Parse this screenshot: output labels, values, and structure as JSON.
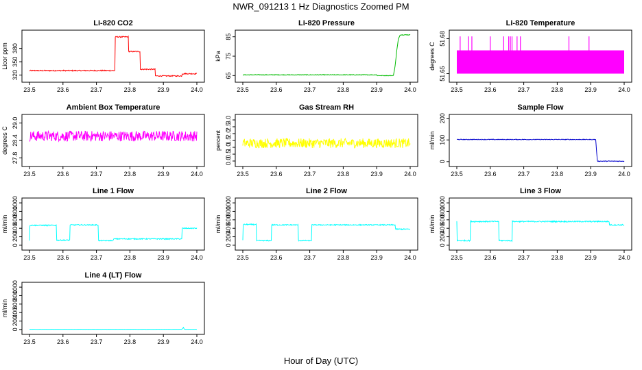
{
  "figure": {
    "title": "NWR_091213  1 Hz Diagnostics Zoomed PM",
    "xlabel": "Hour of Day (UTC)"
  },
  "chart_data": [
    {
      "type": "line",
      "title": "Li-820 CO2",
      "ylabel": "Licor ppm",
      "color": "#ff0000",
      "xlim": [
        23.5,
        24.0
      ],
      "ylim": [
        310,
        415
      ],
      "xticks": [
        "23.5",
        "23.6",
        "23.7",
        "23.8",
        "23.9",
        "24.0"
      ],
      "yticks": [
        {
          "v": 320,
          "label": "320"
        },
        {
          "v": 350,
          "label": "350"
        },
        {
          "v": 380,
          "label": "380"
        }
      ],
      "series": [
        {
          "x": [
            23.5,
            23.755,
            23.755,
            23.795,
            23.795,
            23.83,
            23.83,
            23.875,
            23.875,
            23.955,
            23.955,
            24.0
          ],
          "y": [
            330,
            330,
            406,
            406,
            373,
            373,
            333,
            333,
            318,
            318,
            323,
            323
          ],
          "noise": 1.2
        }
      ]
    },
    {
      "type": "line",
      "title": "Li-820 Pressure",
      "ylabel": "kPa",
      "color": "#00bb00",
      "xlim": [
        23.5,
        24.0
      ],
      "ylim": [
        63,
        87
      ],
      "xticks": [
        "23.5",
        "23.6",
        "23.7",
        "23.8",
        "23.9",
        "24.0"
      ],
      "yticks": [
        {
          "v": 65,
          "label": "65"
        },
        {
          "v": 75,
          "label": "75"
        },
        {
          "v": 85,
          "label": "85"
        }
      ],
      "series": [
        {
          "x": [
            23.5,
            23.9,
            23.9,
            23.95,
            23.955,
            23.96,
            23.965,
            23.97,
            24.0
          ],
          "y": [
            65.4,
            65.4,
            65.0,
            65.0,
            70,
            78,
            84,
            86,
            86
          ],
          "noise": 0.15
        }
      ]
    },
    {
      "type": "line",
      "title": "Li-820 Temperature",
      "ylabel": "degrees C",
      "color": "#ff00ff",
      "xlim": [
        23.5,
        24.0
      ],
      "ylim": [
        51.645,
        51.685
      ],
      "xticks": [
        "23.5",
        "23.6",
        "23.7",
        "23.8",
        "23.9",
        "24.0"
      ],
      "yticks": [
        {
          "v": 51.65,
          "label": "51.65"
        },
        {
          "v": 51.68,
          "label": "51.68"
        }
      ],
      "series": [
        {
          "x": [
            23.5,
            24.0
          ],
          "y": [
            51.665,
            51.665
          ],
          "band": [
            51.65,
            51.67
          ],
          "spikes": [
            23.51,
            23.535,
            23.545,
            23.6,
            23.64,
            23.655,
            23.66,
            23.665,
            23.68,
            23.69,
            23.835,
            23.895
          ],
          "spike_top": 51.682
        }
      ]
    },
    {
      "type": "line",
      "title": "Ambient Box Temperature",
      "ylabel": "degrees C",
      "color": "#ff00ff",
      "xlim": [
        23.5,
        24.0
      ],
      "ylim": [
        27.6,
        29.2
      ],
      "xticks": [
        "23.5",
        "23.6",
        "23.7",
        "23.8",
        "23.9",
        "24.0"
      ],
      "yticks": [
        {
          "v": 27.8,
          "label": "27.8"
        },
        {
          "v": 28.4,
          "label": "28.4"
        },
        {
          "v": 29.0,
          "label": "29.0"
        }
      ],
      "series": [
        {
          "x": [
            23.5,
            24.0
          ],
          "y": [
            28.55,
            28.55
          ],
          "noise": 0.18
        }
      ]
    },
    {
      "type": "line",
      "title": "Gas Stream RH",
      "ylabel": "percent",
      "color": "#ffff00",
      "xlim": [
        23.5,
        24.0
      ],
      "ylim": [
        -0.2,
        3.2
      ],
      "xticks": [
        "23.5",
        "23.6",
        "23.7",
        "23.8",
        "23.9",
        "24.0"
      ],
      "yticks": [
        {
          "v": 0.0,
          "label": "0.0"
        },
        {
          "v": 0.5,
          "label": "0.5"
        },
        {
          "v": 1.0,
          "label": "1.0"
        },
        {
          "v": 1.5,
          "label": "1.5"
        },
        {
          "v": 2.0,
          "label": "2.0"
        },
        {
          "v": 2.5,
          "label": "2.5"
        },
        {
          "v": 3.0,
          "label": "3.0"
        }
      ],
      "series": [
        {
          "x": [
            23.5,
            24.0
          ],
          "y": [
            1.3,
            1.3
          ],
          "noise": 0.35
        }
      ]
    },
    {
      "type": "line",
      "title": "Sample Flow",
      "ylabel": "ml/min",
      "color": "#0000cc",
      "xlim": [
        23.5,
        24.0
      ],
      "ylim": [
        -10,
        205
      ],
      "xticks": [
        "23.5",
        "23.6",
        "23.7",
        "23.8",
        "23.9",
        "24.0"
      ],
      "yticks": [
        {
          "v": 0,
          "label": "0"
        },
        {
          "v": 100,
          "label": "100"
        },
        {
          "v": 200,
          "label": "200"
        }
      ],
      "series": [
        {
          "x": [
            23.5,
            23.915,
            23.915,
            23.92,
            23.92,
            24.0
          ],
          "y": [
            102,
            102,
            100,
            2,
            2,
            2
          ],
          "noise": 1.5
        }
      ]
    },
    {
      "type": "line",
      "title": "Line 1 Flow",
      "ylabel": "ml/min",
      "color": "#00ffff",
      "xlim": [
        23.5,
        24.0
      ],
      "ylim": [
        -50,
        1050
      ],
      "xticks": [
        "23.5",
        "23.6",
        "23.7",
        "23.8",
        "23.9",
        "24.0"
      ],
      "yticks": [
        {
          "v": 0,
          "label": "0"
        },
        {
          "v": 200,
          "label": "200"
        },
        {
          "v": 400,
          "label": "400"
        },
        {
          "v": 600,
          "label": "600"
        },
        {
          "v": 800,
          "label": "800"
        },
        {
          "v": 1000,
          "label": "1000"
        }
      ],
      "series": [
        {
          "x": [
            23.5,
            23.5,
            23.58,
            23.58,
            23.62,
            23.62,
            23.705,
            23.705,
            23.75,
            23.75,
            23.955,
            23.955,
            24.0
          ],
          "y": [
            120,
            470,
            470,
            120,
            120,
            480,
            480,
            110,
            110,
            150,
            150,
            400,
            400
          ],
          "noise": 12
        }
      ]
    },
    {
      "type": "line",
      "title": "Line 2 Flow",
      "ylabel": "ml/min",
      "color": "#00ffff",
      "xlim": [
        23.5,
        24.0
      ],
      "ylim": [
        -50,
        1050
      ],
      "xticks": [
        "23.5",
        "23.6",
        "23.7",
        "23.8",
        "23.9",
        "24.0"
      ],
      "yticks": [
        {
          "v": 0,
          "label": "0"
        },
        {
          "v": 200,
          "label": "200"
        },
        {
          "v": 400,
          "label": "400"
        },
        {
          "v": 600,
          "label": "600"
        },
        {
          "v": 800,
          "label": "800"
        },
        {
          "v": 1000,
          "label": "1000"
        }
      ],
      "series": [
        {
          "x": [
            23.5,
            23.5,
            23.54,
            23.54,
            23.585,
            23.585,
            23.665,
            23.665,
            23.705,
            23.705,
            23.955,
            23.955,
            24.0
          ],
          "y": [
            120,
            490,
            490,
            110,
            110,
            480,
            480,
            110,
            110,
            480,
            480,
            380,
            380
          ],
          "noise": 12
        }
      ]
    },
    {
      "type": "line",
      "title": "Line 3 Flow",
      "ylabel": "ml/min",
      "color": "#00ffff",
      "xlim": [
        23.5,
        24.0
      ],
      "ylim": [
        -50,
        1050
      ],
      "xticks": [
        "23.5",
        "23.6",
        "23.7",
        "23.8",
        "23.9",
        "24.0"
      ],
      "yticks": [
        {
          "v": 0,
          "label": "0"
        },
        {
          "v": 200,
          "label": "200"
        },
        {
          "v": 400,
          "label": "400"
        },
        {
          "v": 600,
          "label": "600"
        },
        {
          "v": 800,
          "label": "800"
        },
        {
          "v": 1000,
          "label": "1000"
        }
      ],
      "series": [
        {
          "x": [
            23.5,
            23.5,
            23.54,
            23.54,
            23.625,
            23.625,
            23.665,
            23.665,
            23.955,
            23.955,
            24.0
          ],
          "y": [
            560,
            110,
            110,
            560,
            560,
            110,
            110,
            560,
            560,
            480,
            480
          ],
          "noise": 14
        }
      ]
    },
    {
      "type": "line",
      "title": "Line 4 (LT) Flow",
      "ylabel": "ml/min",
      "color": "#00ffff",
      "xlim": [
        23.5,
        24.0
      ],
      "ylim": [
        -50,
        1050
      ],
      "xticks": [
        "23.5",
        "23.6",
        "23.7",
        "23.8",
        "23.9",
        "24.0"
      ],
      "yticks": [
        {
          "v": 0,
          "label": "0"
        },
        {
          "v": 200,
          "label": "200"
        },
        {
          "v": 400,
          "label": "400"
        },
        {
          "v": 600,
          "label": "600"
        },
        {
          "v": 800,
          "label": "800"
        },
        {
          "v": 1000,
          "label": "1000"
        }
      ],
      "series": [
        {
          "x": [
            23.5,
            23.955,
            23.96,
            23.962,
            23.965,
            24.0
          ],
          "y": [
            5,
            5,
            50,
            10,
            5,
            5
          ],
          "noise": 2
        }
      ]
    }
  ]
}
